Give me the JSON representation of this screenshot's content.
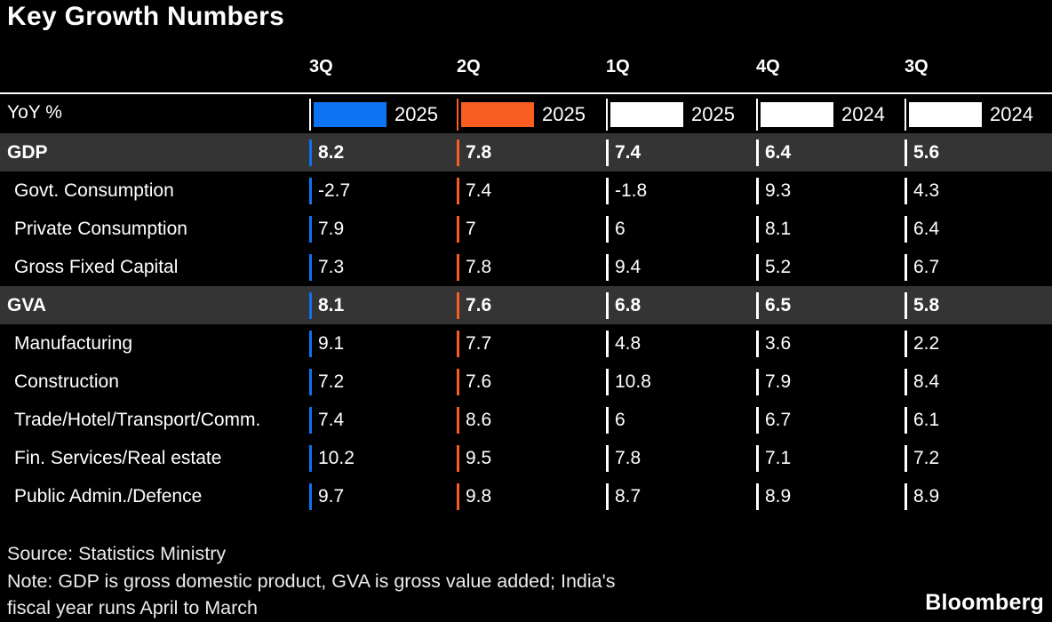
{
  "title": "Key Growth Numbers",
  "unit_label": "YoY %",
  "source_line": "Source: Statistics Ministry",
  "note_lines": [
    "Note: GDP is gross domestic product, GVA is gross value added; India's",
    "fiscal year runs April to March"
  ],
  "brand": "Bloomberg",
  "colors": {
    "background": "#000000",
    "section_band": "#343434",
    "blue": "#0d73f2",
    "orange": "#f95d22",
    "white_swatch": "#ffffff",
    "footer_text": "#ebebe8"
  },
  "columns": [
    {
      "quarter": "3Q",
      "year": "2025",
      "swatch": "#0d73f2"
    },
    {
      "quarter": "2Q",
      "year": "2025",
      "swatch": "#f95d22"
    },
    {
      "quarter": "1Q",
      "year": "2025",
      "swatch": "#ffffff"
    },
    {
      "quarter": "4Q",
      "year": "2024",
      "swatch": "#ffffff"
    },
    {
      "quarter": "3Q",
      "year": "2024",
      "swatch": "#ffffff"
    }
  ],
  "rows": [
    {
      "label": "GDP",
      "section": true,
      "values": [
        "8.2",
        "7.8",
        "7.4",
        "6.4",
        "5.6"
      ]
    },
    {
      "label": "Govt. Consumption",
      "section": false,
      "values": [
        "-2.7",
        "7.4",
        "-1.8",
        "9.3",
        "4.3"
      ]
    },
    {
      "label": "Private Consumption",
      "section": false,
      "values": [
        "7.9",
        "7",
        "6",
        "8.1",
        "6.4"
      ]
    },
    {
      "label": "Gross Fixed Capital",
      "section": false,
      "values": [
        "7.3",
        "7.8",
        "9.4",
        "5.2",
        "6.7"
      ]
    },
    {
      "label": "GVA",
      "section": true,
      "values": [
        "8.1",
        "7.6",
        "6.8",
        "6.5",
        "5.8"
      ]
    },
    {
      "label": "Manufacturing",
      "section": false,
      "values": [
        "9.1",
        "7.7",
        "4.8",
        "3.6",
        "2.2"
      ]
    },
    {
      "label": "Construction",
      "section": false,
      "values": [
        "7.2",
        "7.6",
        "10.8",
        "7.9",
        "8.4"
      ]
    },
    {
      "label": "Trade/Hotel/Transport/Comm.",
      "section": false,
      "values": [
        "7.4",
        "8.6",
        "6",
        "6.7",
        "6.1"
      ]
    },
    {
      "label": "Fin. Services/Real estate",
      "section": false,
      "values": [
        "10.2",
        "9.5",
        "7.8",
        "7.1",
        "7.2"
      ]
    },
    {
      "label": "Public Admin./Defence",
      "section": false,
      "values": [
        "9.7",
        "9.8",
        "8.7",
        "8.9",
        "8.9"
      ]
    }
  ],
  "chart_data": {
    "type": "table",
    "title": "Key Growth Numbers",
    "unit": "YoY %",
    "row_labels": [
      "GDP",
      "Govt. Consumption",
      "Private Consumption",
      "Gross Fixed Capital",
      "GVA",
      "Manufacturing",
      "Construction",
      "Trade/Hotel/Transport/Comm.",
      "Fin. Services/Real estate",
      "Public Admin./Defence"
    ],
    "columns": [
      "3Q 2025",
      "2Q 2025",
      "1Q 2025",
      "4Q 2024",
      "3Q 2024"
    ],
    "series": [
      {
        "name": "3Q 2025",
        "values": [
          8.2,
          -2.7,
          7.9,
          7.3,
          8.1,
          9.1,
          7.2,
          7.4,
          10.2,
          9.7
        ]
      },
      {
        "name": "2Q 2025",
        "values": [
          7.8,
          7.4,
          7,
          7.8,
          7.6,
          7.7,
          7.6,
          8.6,
          9.5,
          9.8
        ]
      },
      {
        "name": "1Q 2025",
        "values": [
          7.4,
          -1.8,
          6,
          9.4,
          6.8,
          4.8,
          10.8,
          6,
          7.8,
          8.7
        ]
      },
      {
        "name": "4Q 2024",
        "values": [
          6.4,
          9.3,
          8.1,
          5.2,
          6.5,
          3.6,
          7.9,
          6.7,
          7.1,
          8.9
        ]
      },
      {
        "name": "3Q 2024",
        "values": [
          5.6,
          4.3,
          6.4,
          6.7,
          5.8,
          2.2,
          8.4,
          6.1,
          7.2,
          8.9
        ]
      }
    ],
    "source": "Statistics Ministry",
    "note": "GDP is gross domestic product, GVA is gross value added; India's fiscal year runs April to March"
  }
}
